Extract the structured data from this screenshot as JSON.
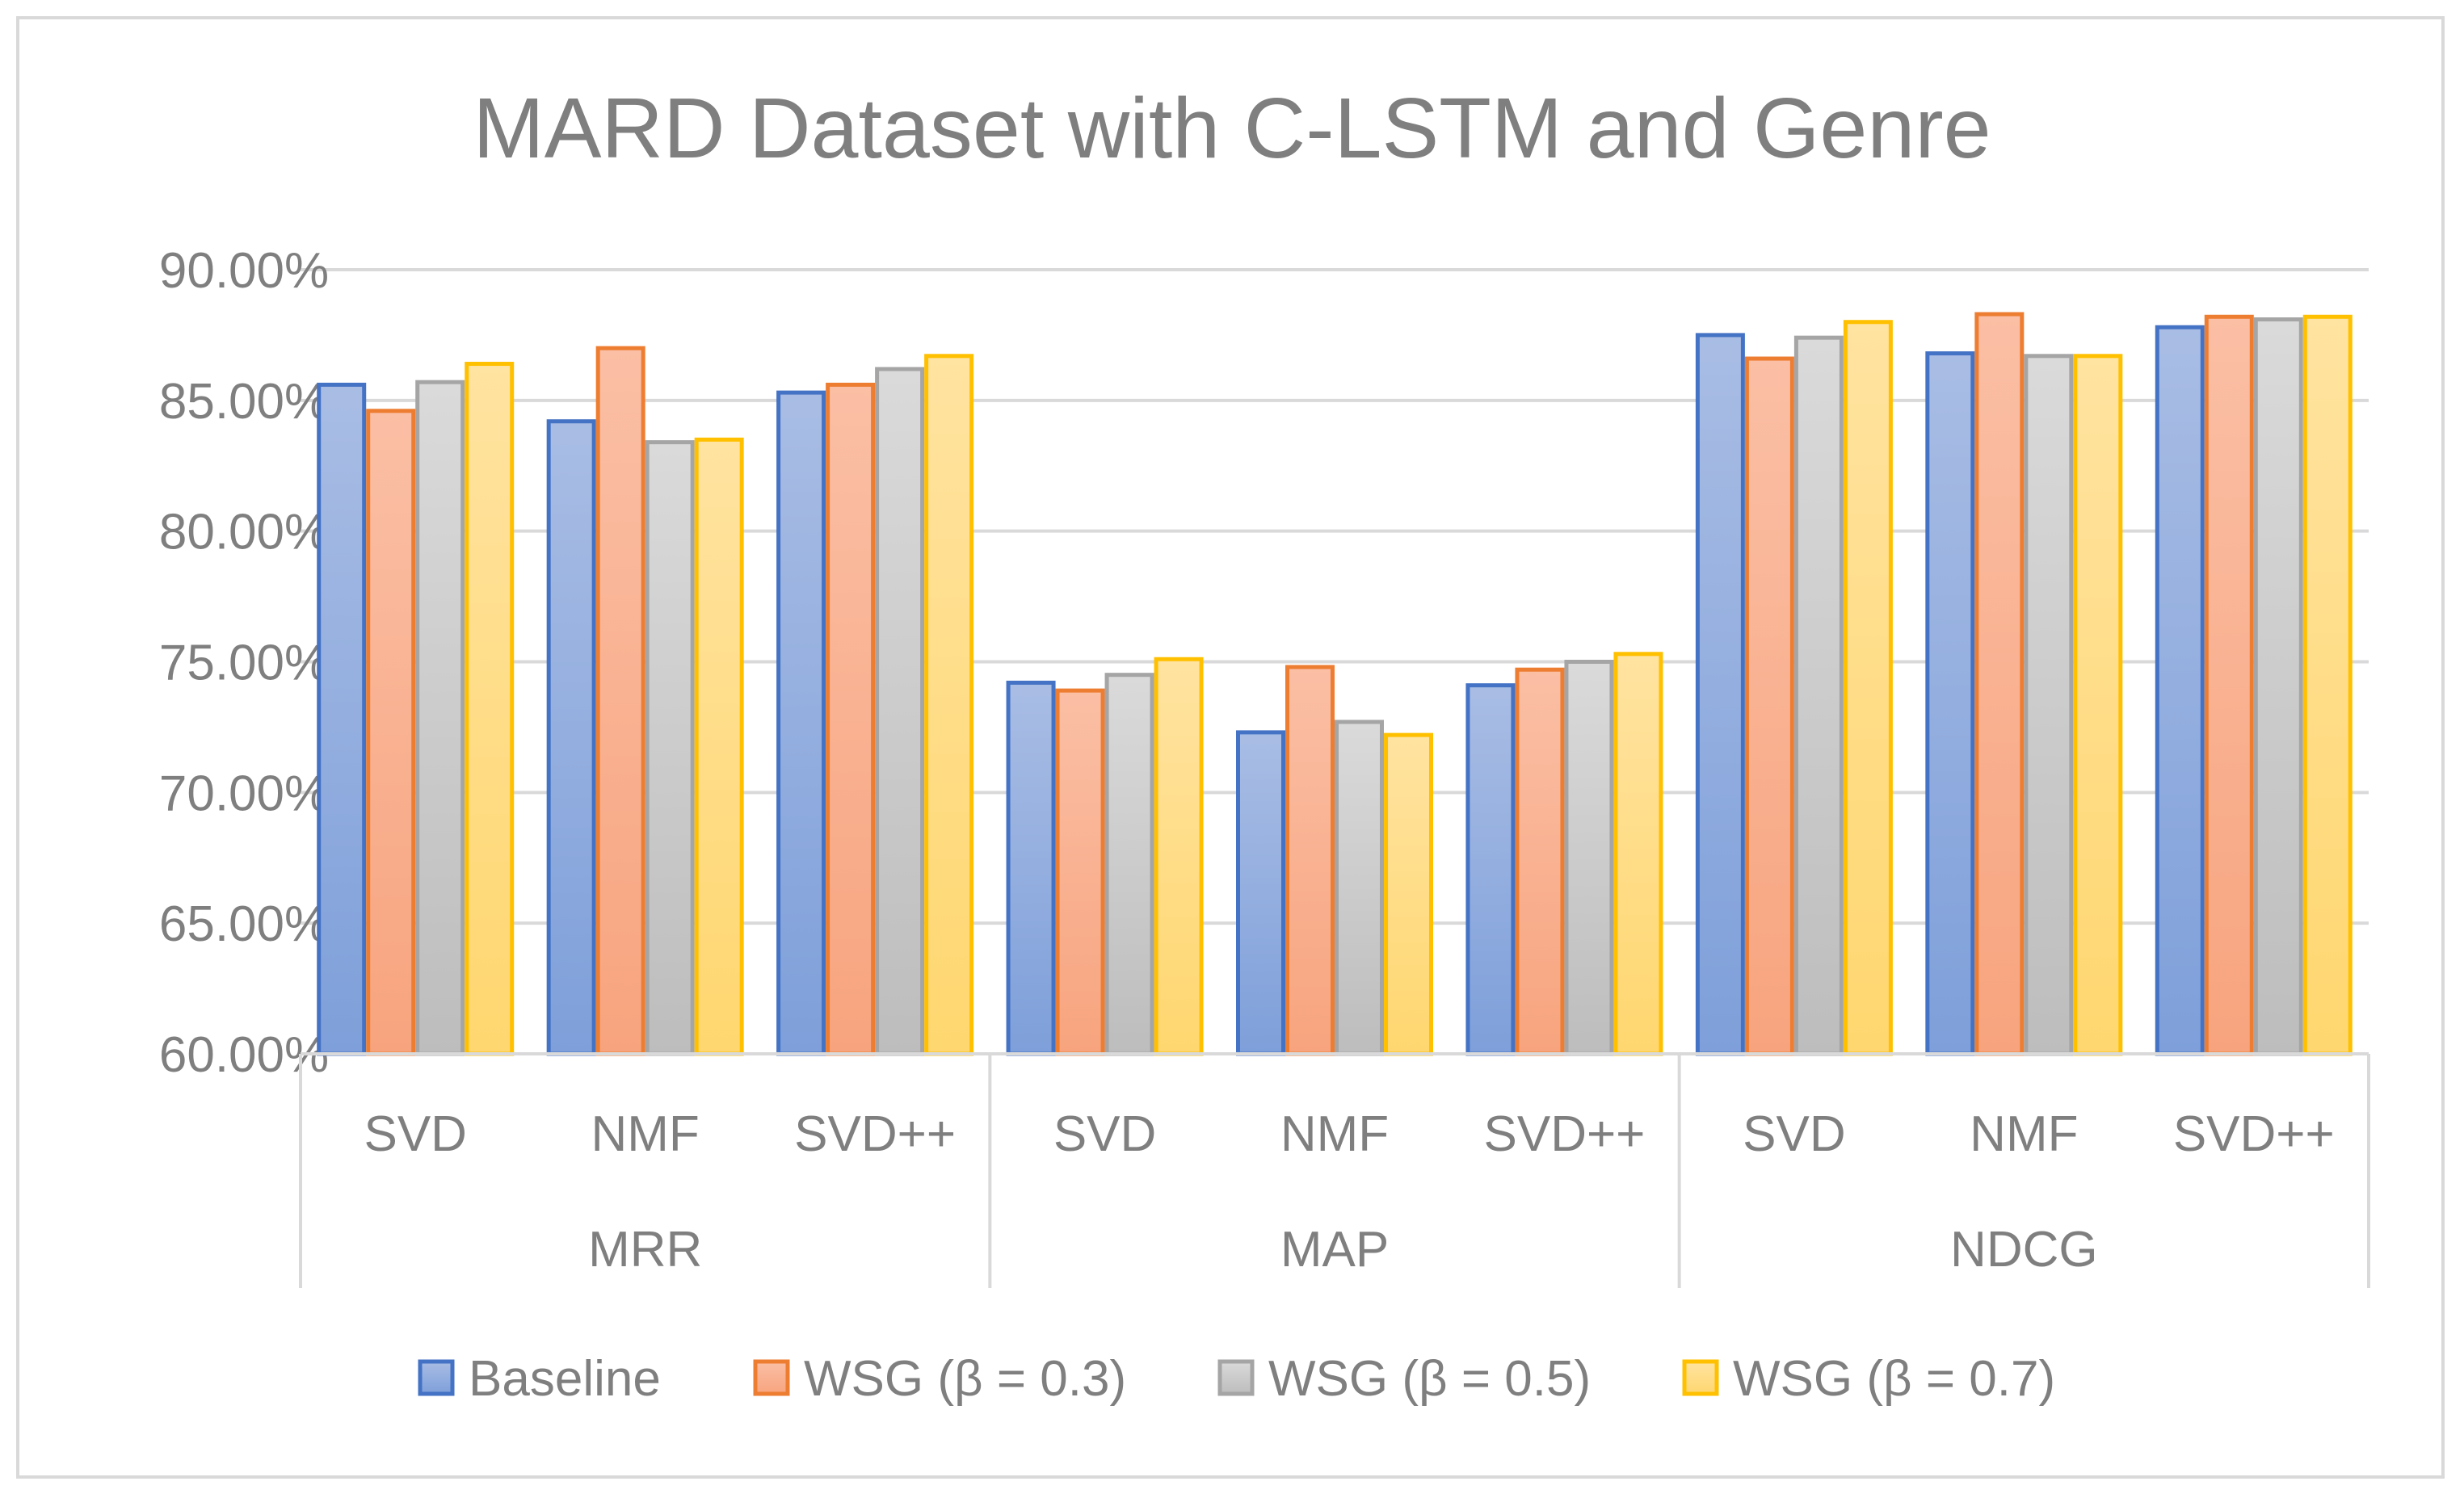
{
  "chart_data": {
    "type": "bar",
    "title": "MARD Dataset with C-LSTM and Genre",
    "xlabel": "",
    "ylabel": "",
    "ylim": [
      0.6,
      0.9
    ],
    "y_ticks": [
      "60.00%",
      "65.00%",
      "70.00%",
      "75.00%",
      "80.00%",
      "85.00%",
      "90.00%"
    ],
    "y_tick_values": [
      0.6,
      0.65,
      0.7,
      0.75,
      0.8,
      0.85,
      0.9
    ],
    "grid": true,
    "legend_position": "bottom",
    "groups": [
      {
        "label": "MRR",
        "categories": [
          "SVD",
          "NMF",
          "SVD++"
        ]
      },
      {
        "label": "MAP",
        "categories": [
          "SVD",
          "NMF",
          "SVD++"
        ]
      },
      {
        "label": "NDCG",
        "categories": [
          "SVD",
          "NMF",
          "SVD++"
        ]
      }
    ],
    "categories": [
      "MRR SVD",
      "MRR NMF",
      "MRR SVD++",
      "MAP SVD",
      "MAP NMF",
      "MAP SVD++",
      "NDCG SVD",
      "NDCG NMF",
      "NDCG SVD++"
    ],
    "series": [
      {
        "name": "Baseline",
        "color": "#4472c4",
        "fill_top": "#a9bde4",
        "fill_bottom": "#7e9fda",
        "values": [
          0.856,
          0.842,
          0.853,
          0.742,
          0.723,
          0.741,
          0.875,
          0.868,
          0.878
        ]
      },
      {
        "name": "WSG (β = 0.3)",
        "color": "#ed7d31",
        "fill_top": "#fbbfa5",
        "fill_bottom": "#f7a47e",
        "values": [
          0.846,
          0.87,
          0.856,
          0.739,
          0.748,
          0.747,
          0.866,
          0.883,
          0.882
        ]
      },
      {
        "name": "WSG (β = 0.5)",
        "color": "#a5a5a5",
        "fill_top": "#dadada",
        "fill_bottom": "#bdbdbd",
        "values": [
          0.857,
          0.834,
          0.862,
          0.745,
          0.727,
          0.75,
          0.874,
          0.867,
          0.881
        ]
      },
      {
        "name": "WSG (β = 0.7)",
        "color": "#ffc000",
        "fill_top": "#ffe3a0",
        "fill_bottom": "#ffd770",
        "values": [
          0.864,
          0.835,
          0.867,
          0.751,
          0.722,
          0.753,
          0.88,
          0.867,
          0.882
        ]
      }
    ]
  }
}
